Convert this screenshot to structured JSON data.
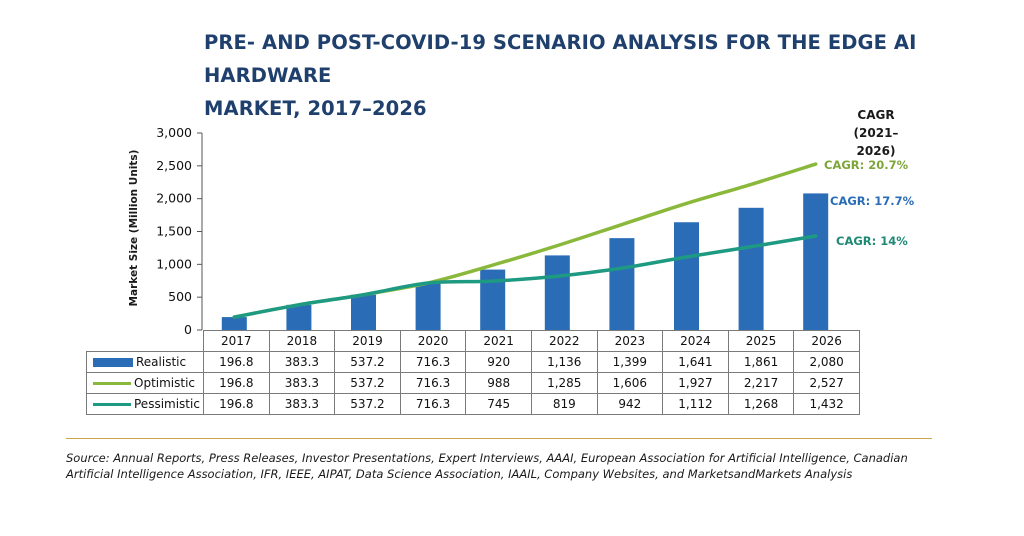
{
  "title": {
    "line1": "PRE- AND POST-COVID-19 SCENARIO ANALYSIS FOR THE EDGE AI HARDWARE",
    "line2": "MARKET, 2017–2026"
  },
  "chart_data": {
    "type": "bar",
    "title": "PRE- AND POST-COVID-19 SCENARIO ANALYSIS FOR THE EDGE AI HARDWARE MARKET, 2017–2026",
    "ylabel": "Market Size (Million Units)",
    "xlabel": "",
    "ylim": [
      0,
      3000
    ],
    "yticks": [
      "3,000",
      "2,500",
      "2,000",
      "1,500",
      "1,000",
      "500",
      "0"
    ],
    "ytick_values": [
      3000,
      2500,
      2000,
      1500,
      1000,
      500,
      0
    ],
    "categories": [
      "2017",
      "2018",
      "2019",
      "2020",
      "2021",
      "2022",
      "2023",
      "2024",
      "2025",
      "2026"
    ],
    "series": [
      {
        "name": "Realistic",
        "type": "bar",
        "color": "#2a6db6",
        "values": [
          196.8,
          383.3,
          537.2,
          716.3,
          920,
          1136,
          1399,
          1641,
          1861,
          2080
        ],
        "labels": [
          "196.8",
          "383.3",
          "537.2",
          "716.3",
          "920",
          "1,136",
          "1,399",
          "1,641",
          "1,861",
          "2,080"
        ]
      },
      {
        "name": "Optimistic",
        "type": "line",
        "color": "#8ab83a",
        "values": [
          196.8,
          383.3,
          537.2,
          716.3,
          988,
          1285,
          1606,
          1927,
          2217,
          2527
        ],
        "labels": [
          "196.8",
          "383.3",
          "537.2",
          "716.3",
          "988",
          "1,285",
          "1,606",
          "1,927",
          "2,217",
          "2,527"
        ]
      },
      {
        "name": "Pessimistic",
        "type": "line",
        "color": "#1e9a82",
        "values": [
          196.8,
          383.3,
          537.2,
          716.3,
          745,
          819,
          942,
          1112,
          1268,
          1432
        ],
        "labels": [
          "196.8",
          "383.3",
          "537.2",
          "716.3",
          "745",
          "819",
          "942",
          "1,112",
          "1,268",
          "1,432"
        ]
      }
    ],
    "cagr": {
      "heading_line1": "CAGR",
      "heading_line2": "(2021–2026)",
      "optimistic": "CAGR: 20.7%",
      "realistic": "CAGR: 17.7%",
      "pessimistic": "CAGR: 14%"
    },
    "grid": false,
    "legend": "data-table-below"
  },
  "source": "Source: Annual Reports, Press Releases, Investor Presentations, Expert Interviews, AAAI, European Association for Artificial Intelligence, Canadian Artificial Intelligence Association, IFR, IEEE, AIPAT, Data Science Association, IAAIL, Company Websites, and MarketsandMarkets Analysis"
}
